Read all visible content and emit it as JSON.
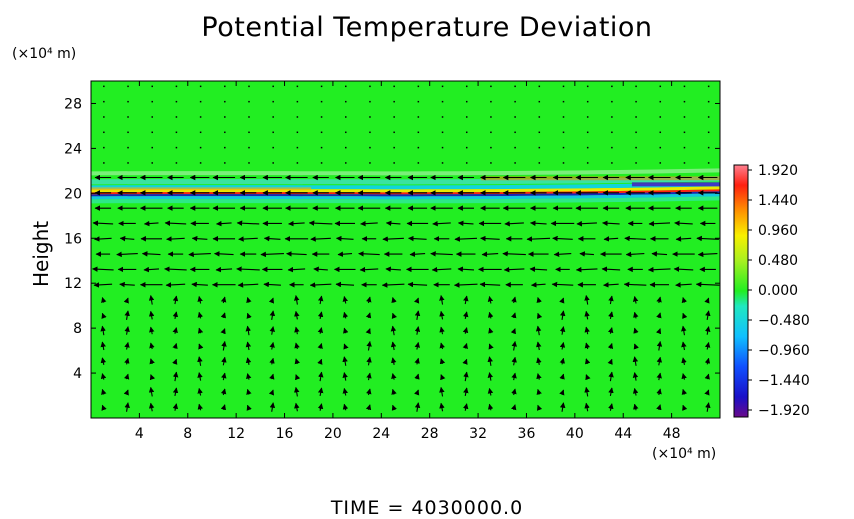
{
  "chart_data": {
    "type": "heatmap",
    "title": "Potential Temperature Deviation",
    "ylabel": "Height",
    "xunit_label": "(×10⁴ m)",
    "yunit_label": "(×10⁴ m)",
    "xlim": [
      0,
      52
    ],
    "ylim": [
      0,
      30
    ],
    "xticks": [
      4,
      8,
      12,
      16,
      20,
      24,
      28,
      32,
      36,
      40,
      44,
      48
    ],
    "yticks": [
      4,
      8,
      12,
      16,
      20,
      24,
      28
    ],
    "colorbar": {
      "ticks": [
        "1.920",
        "1.440",
        "0.960",
        "0.480",
        "0.000",
        "−0.480",
        "−0.960",
        "−1.440",
        "−1.920"
      ],
      "range": [
        -1.92,
        1.92
      ]
    },
    "field_background_value": 0.0,
    "perturbation_band": {
      "y_center": 20.0,
      "y_range": [
        19.0,
        22.0
      ]
    },
    "time_label": "TIME  =  4030000.0"
  },
  "colors": {
    "field": "#22ee22",
    "arrows": "#000000"
  }
}
